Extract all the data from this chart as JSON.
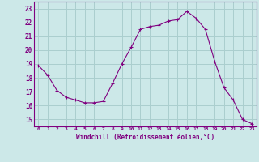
{
  "x": [
    0,
    1,
    2,
    3,
    4,
    5,
    6,
    7,
    8,
    9,
    10,
    11,
    12,
    13,
    14,
    15,
    16,
    17,
    18,
    19,
    20,
    21,
    22,
    23
  ],
  "y": [
    18.9,
    18.2,
    17.1,
    16.6,
    16.4,
    16.2,
    16.2,
    16.3,
    17.6,
    19.0,
    20.2,
    21.5,
    21.7,
    21.8,
    22.1,
    22.2,
    22.8,
    22.3,
    21.5,
    19.2,
    17.3,
    16.4,
    15.0,
    14.7
  ],
  "line_color": "#800080",
  "marker": "+",
  "marker_size": 3,
  "bg_color": "#cce8e8",
  "grid_color": "#aacece",
  "xlabel": "Windchill (Refroidissement éolien,°C)",
  "xlabel_color": "#800080",
  "tick_color": "#800080",
  "ylim": [
    14.5,
    23.5
  ],
  "xlim": [
    -0.5,
    23.5
  ],
  "yticks": [
    15,
    16,
    17,
    18,
    19,
    20,
    21,
    22,
    23
  ],
  "xticks": [
    0,
    1,
    2,
    3,
    4,
    5,
    6,
    7,
    8,
    9,
    10,
    11,
    12,
    13,
    14,
    15,
    16,
    17,
    18,
    19,
    20,
    21,
    22,
    23
  ],
  "xtick_labels": [
    "0",
    "1",
    "2",
    "3",
    "4",
    "5",
    "6",
    "7",
    "8",
    "9",
    "10",
    "11",
    "12",
    "13",
    "14",
    "15",
    "16",
    "17",
    "18",
    "19",
    "20",
    "21",
    "22",
    "23"
  ],
  "spine_color": "#800080",
  "title": ""
}
